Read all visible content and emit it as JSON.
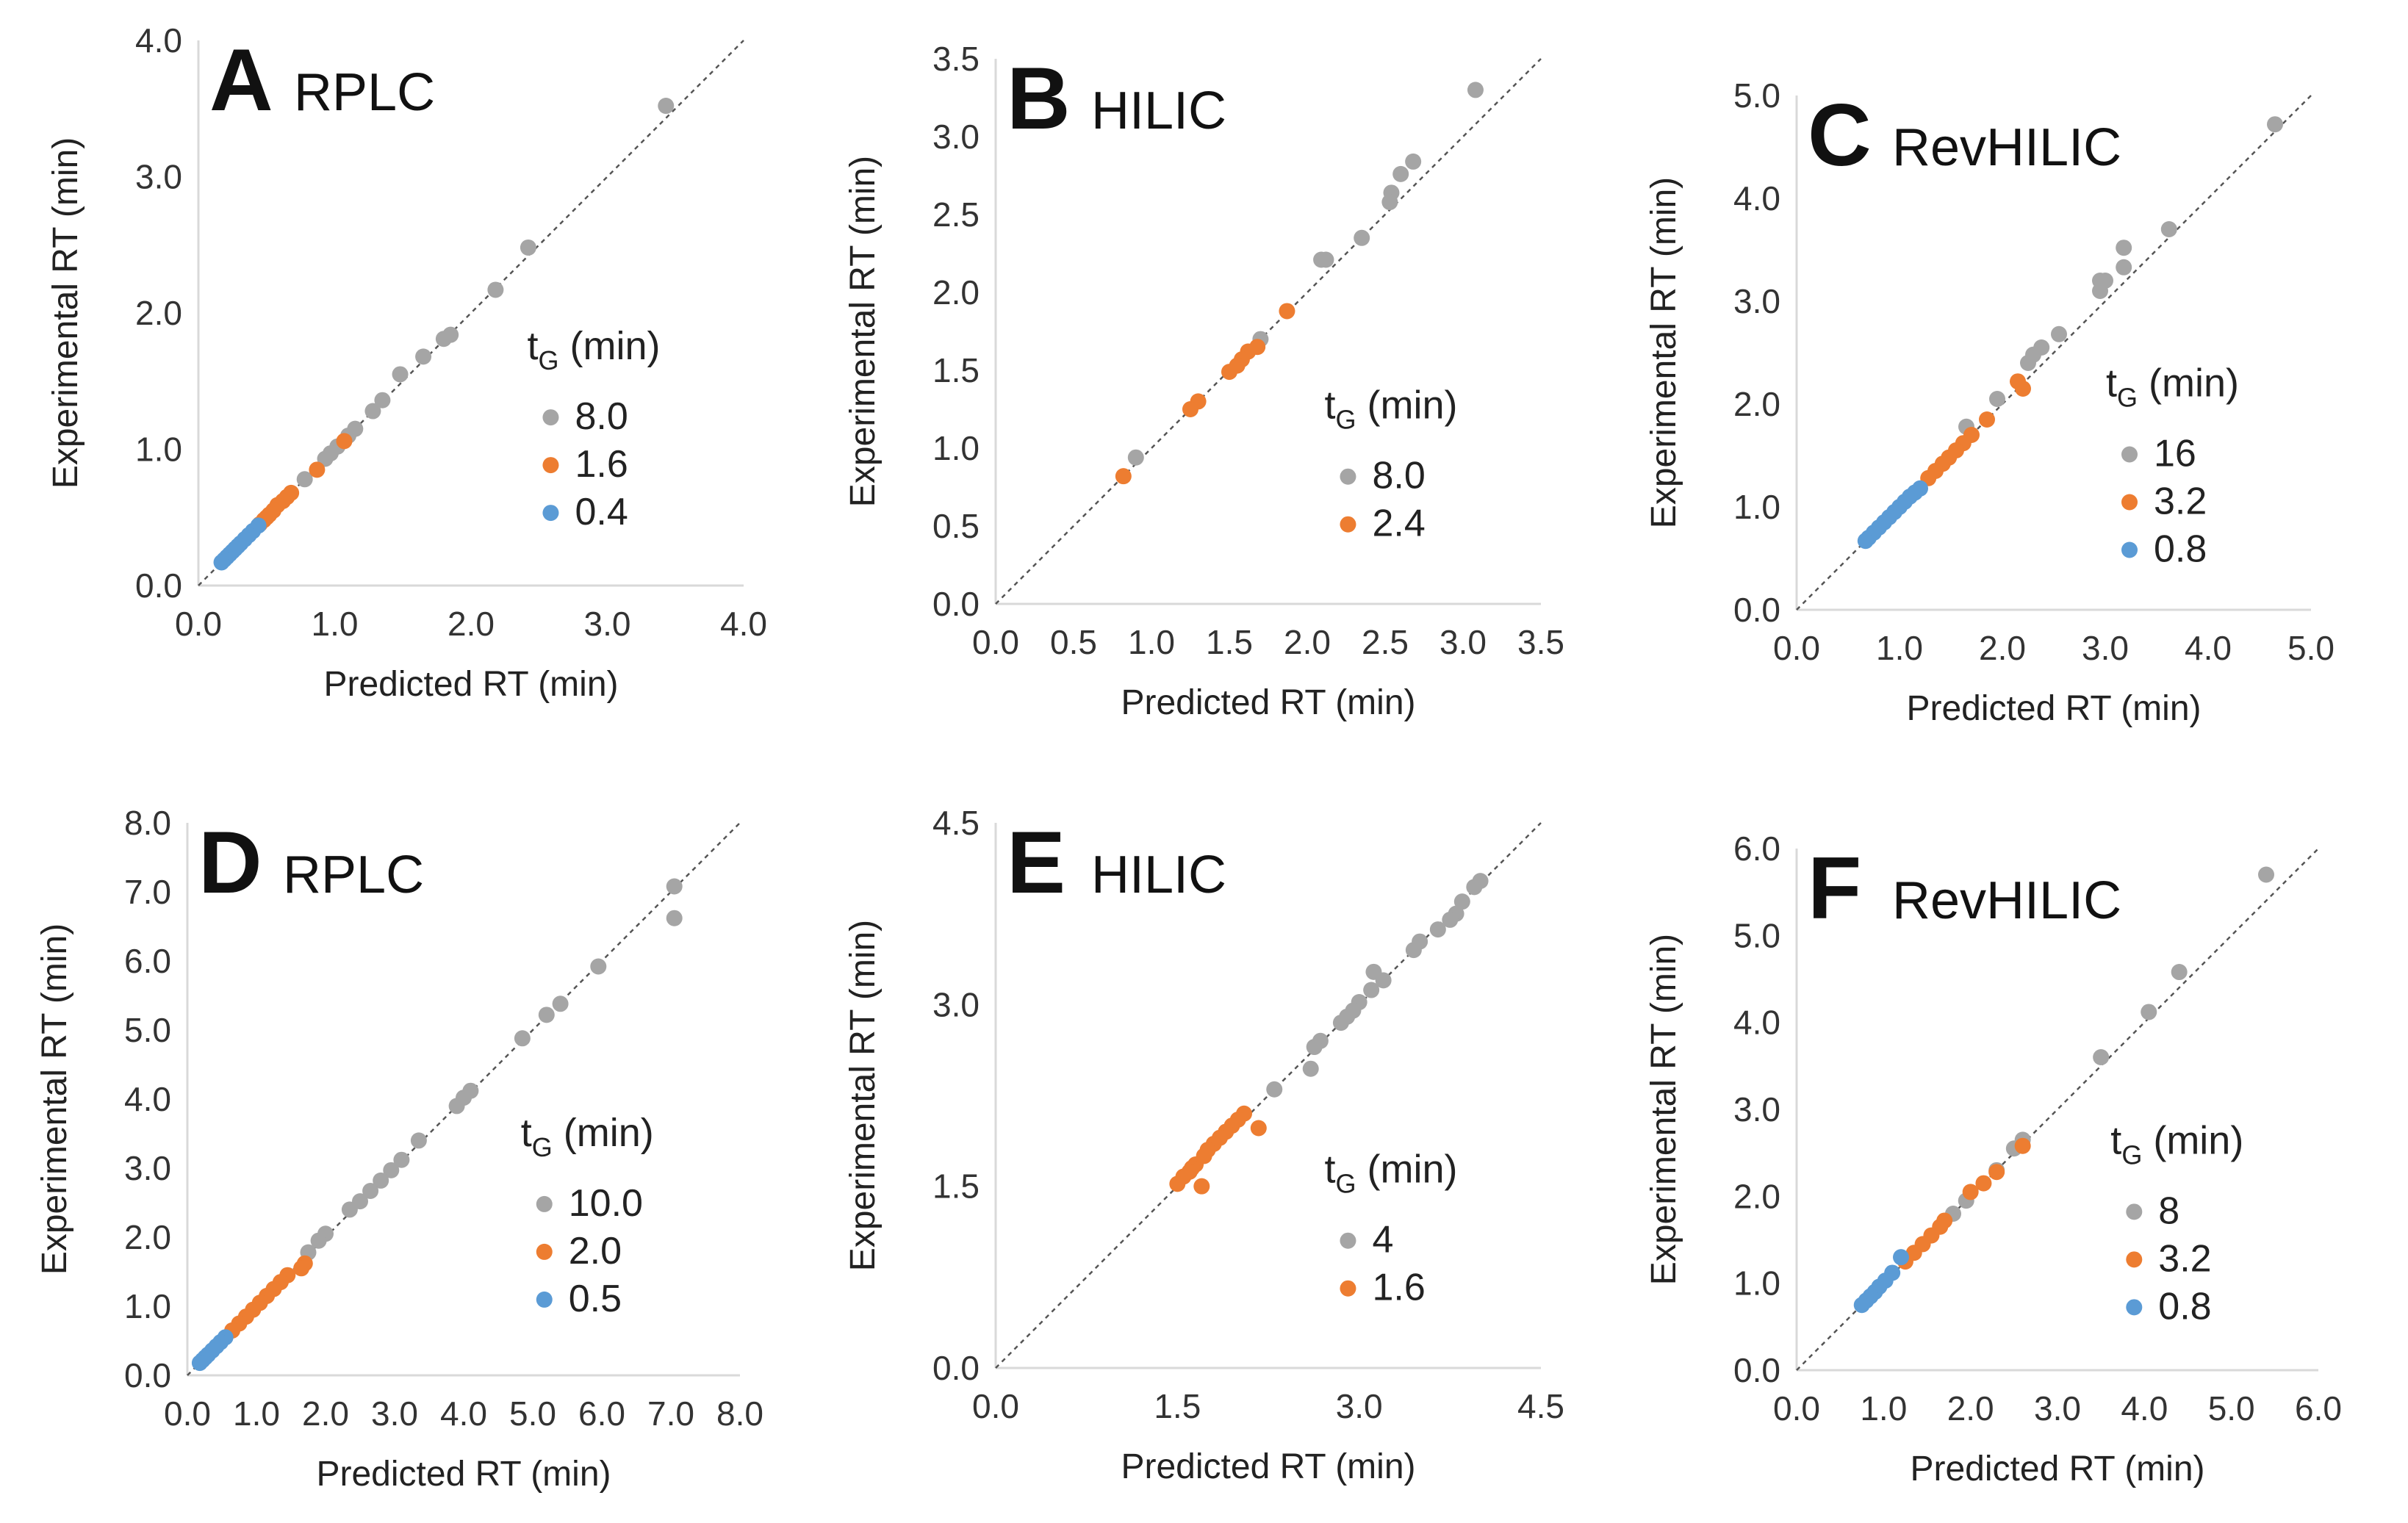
{
  "colors": {
    "gray": "#A5A5A5",
    "orange": "#ED7D31",
    "blue": "#5B9BD5",
    "axis": "#D9D9D9",
    "diagonal": "#555555"
  },
  "chart_data": [
    {
      "type": "scatter",
      "letter": "A",
      "mode": "RPLC",
      "xlabel": "Predicted RT (min)",
      "ylabel": "Experimental RT (min)",
      "xlim": [
        0,
        4
      ],
      "ylim": [
        0,
        4
      ],
      "xticks": [
        "0.0",
        "1.0",
        "2.0",
        "3.0",
        "4.0"
      ],
      "yticks": [
        "0.0",
        "1.0",
        "2.0",
        "3.0",
        "4.0"
      ],
      "diagonal": true,
      "legend": {
        "title_main": "t",
        "title_sub": "G",
        "title_rest": " (min)",
        "position": "right"
      },
      "series": [
        {
          "name": "8.0",
          "color": "#A5A5A5",
          "x": [
            3.43,
            2.42,
            2.18,
            1.85,
            1.8,
            1.65,
            1.48,
            1.35,
            1.28,
            1.15,
            1.1,
            1.02,
            0.97,
            0.93,
            0.78
          ],
          "y": [
            3.52,
            2.48,
            2.17,
            1.84,
            1.81,
            1.68,
            1.55,
            1.36,
            1.28,
            1.15,
            1.1,
            1.02,
            0.97,
            0.93,
            0.78
          ]
        },
        {
          "name": "1.6",
          "color": "#ED7D31",
          "x": [
            1.07,
            0.87,
            0.68,
            0.65,
            0.62,
            0.58,
            0.55,
            0.52,
            0.5,
            0.48,
            0.45
          ],
          "y": [
            1.06,
            0.85,
            0.68,
            0.65,
            0.62,
            0.59,
            0.55,
            0.52,
            0.5,
            0.48,
            0.45
          ]
        },
        {
          "name": "0.4",
          "color": "#5B9BD5",
          "x": [
            0.44,
            0.4,
            0.37,
            0.34,
            0.31,
            0.29,
            0.27,
            0.25,
            0.23,
            0.21,
            0.19,
            0.17
          ],
          "y": [
            0.44,
            0.4,
            0.37,
            0.34,
            0.31,
            0.29,
            0.27,
            0.25,
            0.23,
            0.21,
            0.19,
            0.17
          ]
        }
      ]
    },
    {
      "type": "scatter",
      "letter": "B",
      "mode": "HILIC",
      "xlabel": "Predicted RT (min)",
      "ylabel": "Experimental RT (min)",
      "xlim": [
        0,
        3.5
      ],
      "ylim": [
        0,
        3.5
      ],
      "xticks": [
        "0.0",
        "0.5",
        "1.0",
        "1.5",
        "2.0",
        "2.5",
        "3.0",
        "3.5"
      ],
      "yticks": [
        "0.0",
        "0.5",
        "1.0",
        "1.5",
        "2.0",
        "2.5",
        "3.0",
        "3.5"
      ],
      "diagonal": true,
      "legend": {
        "title_main": "t",
        "title_sub": "G",
        "title_rest": " (min)",
        "position": "right"
      },
      "series": [
        {
          "name": "8.0",
          "color": "#A5A5A5",
          "x": [
            3.08,
            2.68,
            2.6,
            2.54,
            2.53,
            2.35,
            2.12,
            2.09,
            1.7,
            0.9
          ],
          "y": [
            3.3,
            2.84,
            2.76,
            2.64,
            2.58,
            2.35,
            2.21,
            2.21,
            1.7,
            0.94
          ]
        },
        {
          "name": "2.4",
          "color": "#ED7D31",
          "x": [
            1.87,
            1.68,
            1.62,
            1.58,
            1.55,
            1.5,
            1.3,
            1.25,
            0.82
          ],
          "y": [
            1.88,
            1.65,
            1.62,
            1.57,
            1.53,
            1.49,
            1.3,
            1.25,
            0.82
          ]
        }
      ]
    },
    {
      "type": "scatter",
      "letter": "C",
      "mode": "RevHILIC",
      "xlabel": "Predicted RT (min)",
      "ylabel": "Experimental RT (min)",
      "xlim": [
        0,
        5
      ],
      "ylim": [
        0,
        5
      ],
      "xticks": [
        "0.0",
        "1.0",
        "2.0",
        "3.0",
        "4.0",
        "5.0"
      ],
      "yticks": [
        "0.0",
        "1.0",
        "2.0",
        "3.0",
        "4.0",
        "5.0"
      ],
      "diagonal": true,
      "legend": {
        "title_main": "t",
        "title_sub": "G",
        "title_rest": " (min)",
        "position": "right"
      },
      "series": [
        {
          "name": "16",
          "color": "#A5A5A5",
          "x": [
            4.65,
            3.62,
            3.18,
            3.18,
            3.0,
            2.95,
            2.95,
            2.55,
            2.38,
            2.3,
            2.25,
            1.95,
            1.65
          ],
          "y": [
            4.72,
            3.7,
            3.52,
            3.33,
            3.2,
            3.2,
            3.1,
            2.68,
            2.55,
            2.48,
            2.4,
            2.05,
            1.78
          ]
        },
        {
          "name": "3.2",
          "color": "#ED7D31",
          "x": [
            2.2,
            2.15,
            1.85,
            1.7,
            1.62,
            1.55,
            1.48,
            1.42,
            1.35,
            1.28
          ],
          "y": [
            2.15,
            2.22,
            1.85,
            1.7,
            1.62,
            1.55,
            1.48,
            1.42,
            1.35,
            1.28
          ]
        },
        {
          "name": "0.8",
          "color": "#5B9BD5",
          "x": [
            1.2,
            1.15,
            1.1,
            1.05,
            1.0,
            0.95,
            0.9,
            0.85,
            0.8,
            0.75,
            0.7,
            0.67
          ],
          "y": [
            1.18,
            1.14,
            1.1,
            1.05,
            1.0,
            0.95,
            0.9,
            0.85,
            0.8,
            0.75,
            0.7,
            0.67
          ]
        }
      ]
    },
    {
      "type": "scatter",
      "letter": "D",
      "mode": "RPLC",
      "xlabel": "Predicted RT (min)",
      "ylabel": "Experimental RT (min)",
      "xlim": [
        0,
        8
      ],
      "ylim": [
        0,
        8
      ],
      "xticks": [
        "0.0",
        "1.0",
        "2.0",
        "3.0",
        "4.0",
        "5.0",
        "6.0",
        "7.0",
        "8.0"
      ],
      "yticks": [
        "0.0",
        "1.0",
        "2.0",
        "3.0",
        "4.0",
        "5.0",
        "6.0",
        "7.0",
        "8.0"
      ],
      "diagonal": true,
      "legend": {
        "title_main": "t",
        "title_sub": "G",
        "title_rest": " (min)",
        "position": "right"
      },
      "series": [
        {
          "name": "10.0",
          "color": "#A5A5A5",
          "x": [
            7.05,
            7.05,
            5.95,
            5.4,
            5.2,
            4.85,
            4.1,
            4.0,
            3.9,
            3.35,
            3.1,
            2.95,
            2.8,
            2.65,
            2.5,
            2.35,
            2.0,
            1.9,
            1.75
          ],
          "y": [
            7.08,
            6.62,
            5.92,
            5.38,
            5.22,
            4.88,
            4.12,
            4.02,
            3.9,
            3.4,
            3.12,
            2.97,
            2.82,
            2.67,
            2.52,
            2.4,
            2.05,
            1.95,
            1.78
          ]
        },
        {
          "name": "2.0",
          "color": "#ED7D31",
          "x": [
            1.7,
            1.65,
            1.45,
            1.35,
            1.25,
            1.15,
            1.05,
            0.95,
            0.85,
            0.75,
            0.65
          ],
          "y": [
            1.62,
            1.55,
            1.45,
            1.35,
            1.25,
            1.15,
            1.05,
            0.95,
            0.85,
            0.75,
            0.65
          ]
        },
        {
          "name": "0.5",
          "color": "#5B9BD5",
          "x": [
            0.55,
            0.48,
            0.42,
            0.36,
            0.3,
            0.26,
            0.22,
            0.18
          ],
          "y": [
            0.55,
            0.48,
            0.42,
            0.36,
            0.3,
            0.26,
            0.22,
            0.18
          ]
        }
      ]
    },
    {
      "type": "scatter",
      "letter": "E",
      "mode": "HILIC",
      "xlabel": "Predicted RT (min)",
      "ylabel": "Experimental RT (min)",
      "xlim": [
        0,
        4.5
      ],
      "ylim": [
        0,
        4.5
      ],
      "xticks": [
        "0.0",
        "1.5",
        "3.0",
        "4.5"
      ],
      "yticks": [
        "0.0",
        "1.5",
        "3.0",
        "4.5"
      ],
      "diagonal": true,
      "legend": {
        "title_main": "t",
        "title_sub": "G",
        "title_rest": " (min)",
        "position": "right"
      },
      "series": [
        {
          "name": "4",
          "color": "#A5A5A5",
          "x": [
            4.0,
            3.95,
            3.85,
            3.8,
            3.75,
            3.65,
            3.5,
            3.45,
            3.2,
            3.12,
            3.1,
            3.0,
            2.95,
            2.9,
            2.85,
            2.68,
            2.63,
            2.6,
            2.3
          ],
          "y": [
            4.02,
            3.97,
            3.85,
            3.75,
            3.7,
            3.62,
            3.52,
            3.45,
            3.2,
            3.27,
            3.12,
            3.02,
            2.95,
            2.9,
            2.85,
            2.7,
            2.65,
            2.47,
            2.3
          ]
        },
        {
          "name": "1.6",
          "color": "#ED7D31",
          "x": [
            2.17,
            2.05,
            2.0,
            1.95,
            1.9,
            1.85,
            1.8,
            1.75,
            1.72,
            1.7,
            1.65,
            1.62,
            1.6,
            1.55,
            1.5
          ],
          "y": [
            1.98,
            2.1,
            2.05,
            2.0,
            1.95,
            1.9,
            1.85,
            1.8,
            1.75,
            1.5,
            1.68,
            1.65,
            1.62,
            1.58,
            1.52
          ]
        }
      ]
    },
    {
      "type": "scatter",
      "letter": "F",
      "mode": "RevHILIC",
      "xlabel": "Predicted RT (min)",
      "ylabel": "Experimental RT (min)",
      "xlim": [
        0,
        6
      ],
      "ylim": [
        0,
        6
      ],
      "xticks": [
        "0.0",
        "1.0",
        "2.0",
        "3.0",
        "4.0",
        "5.0",
        "6.0"
      ],
      "yticks": [
        "0.0",
        "1.0",
        "2.0",
        "3.0",
        "4.0",
        "5.0",
        "6.0"
      ],
      "diagonal": true,
      "legend": {
        "title_main": "t",
        "title_sub": "G",
        "title_rest": " (min)",
        "position": "right"
      },
      "series": [
        {
          "name": "8",
          "color": "#A5A5A5",
          "x": [
            5.4,
            4.4,
            4.05,
            3.5,
            2.6,
            2.5,
            2.3,
            1.95,
            1.8
          ],
          "y": [
            5.7,
            4.58,
            4.12,
            3.6,
            2.65,
            2.55,
            2.3,
            1.95,
            1.8
          ]
        },
        {
          "name": "3.2",
          "color": "#ED7D31",
          "x": [
            2.6,
            2.3,
            2.15,
            2.0,
            1.7,
            1.65,
            1.55,
            1.45,
            1.35,
            1.25
          ],
          "y": [
            2.58,
            2.28,
            2.15,
            2.05,
            1.72,
            1.65,
            1.55,
            1.45,
            1.35,
            1.25
          ]
        },
        {
          "name": "0.8",
          "color": "#5B9BD5",
          "x": [
            1.2,
            1.1,
            1.02,
            0.95,
            0.9,
            0.85,
            0.8,
            0.75
          ],
          "y": [
            1.3,
            1.12,
            1.03,
            0.96,
            0.9,
            0.85,
            0.8,
            0.75
          ]
        }
      ]
    }
  ]
}
